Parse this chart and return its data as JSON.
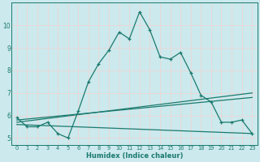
{
  "xlabel": "Humidex (Indice chaleur)",
  "bg_color": "#cce9ed",
  "grid_color": "#e8d8d8",
  "line_color": "#1a7a6e",
  "xlim": [
    -0.5,
    23.5
  ],
  "ylim": [
    4.7,
    11.0
  ],
  "yticks": [
    5,
    6,
    7,
    8,
    9,
    10
  ],
  "xticks": [
    0,
    1,
    2,
    3,
    4,
    5,
    6,
    7,
    8,
    9,
    10,
    11,
    12,
    13,
    14,
    15,
    16,
    17,
    18,
    19,
    20,
    21,
    22,
    23
  ],
  "line1_x": [
    0,
    1,
    2,
    3,
    4,
    5,
    6,
    7,
    8,
    9,
    10,
    11,
    12,
    13,
    14,
    15,
    16,
    17,
    18,
    19,
    20,
    21,
    22,
    23
  ],
  "line1_y": [
    5.9,
    5.5,
    5.5,
    5.7,
    5.2,
    5.0,
    6.2,
    7.5,
    8.3,
    8.9,
    9.7,
    9.4,
    10.6,
    9.8,
    8.6,
    8.5,
    8.8,
    7.9,
    6.9,
    6.6,
    5.7,
    5.7,
    5.8,
    5.2
  ],
  "line2_x": [
    0,
    23
  ],
  "line2_y": [
    5.8,
    6.8
  ],
  "line3_x": [
    0,
    23
  ],
  "line3_y": [
    5.7,
    7.0
  ],
  "line4_x": [
    0,
    23
  ],
  "line4_y": [
    5.6,
    5.2
  ]
}
